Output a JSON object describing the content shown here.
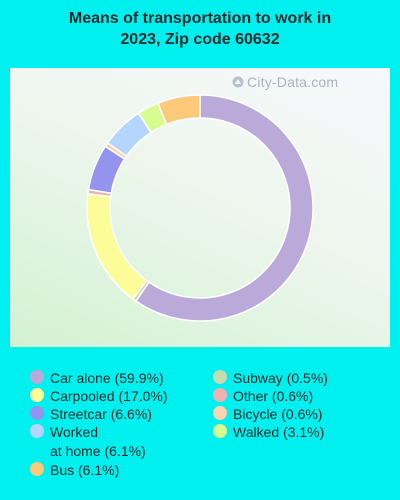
{
  "title_line1": "Means of transportation to work in",
  "title_line2": "2023, Zip code 60632",
  "watermark": "City-Data.com",
  "chart_data": {
    "type": "pie",
    "variant": "donut",
    "title": "Means of transportation to work in 2023, Zip code 60632",
    "legend_position": "bottom",
    "slices": [
      {
        "label": "Car alone",
        "value": 59.9,
        "color": "#bba9da"
      },
      {
        "label": "Subway",
        "value": 0.5,
        "color": "#c8dab0"
      },
      {
        "label": "Carpooled",
        "value": 17.0,
        "color": "#fcfc98"
      },
      {
        "label": "Other",
        "value": 0.6,
        "color": "#f0b0b0"
      },
      {
        "label": "Streetcar",
        "value": 6.6,
        "color": "#9494ee"
      },
      {
        "label": "Bicycle",
        "value": 0.6,
        "color": "#fcd4b0"
      },
      {
        "label": "Worked at home",
        "value": 6.1,
        "color": "#b4d6fc"
      },
      {
        "label": "Walked",
        "value": 3.1,
        "color": "#d6fc90"
      },
      {
        "label": "Bus",
        "value": 6.1,
        "color": "#fcc87a"
      }
    ]
  },
  "legend": [
    {
      "text": "Car alone (59.9%)",
      "color": "#bba9da"
    },
    {
      "text": "Carpooled (17.0%)",
      "color": "#fcfc98"
    },
    {
      "text": "Streetcar (6.6%)",
      "color": "#9494ee"
    },
    {
      "text": "Worked",
      "text2": "at home (6.1%)",
      "color": "#b4d6fc"
    },
    {
      "text": "Bus (6.1%)",
      "color": "#fcc87a"
    },
    {
      "text": "Subway (0.5%)",
      "color": "#c8dab0"
    },
    {
      "text": "Other (0.6%)",
      "color": "#f0b0b0"
    },
    {
      "text": "Bicycle (0.6%)",
      "color": "#fcd4b0"
    },
    {
      "text": "Walked (3.1%)",
      "color": "#d6fc90"
    }
  ]
}
